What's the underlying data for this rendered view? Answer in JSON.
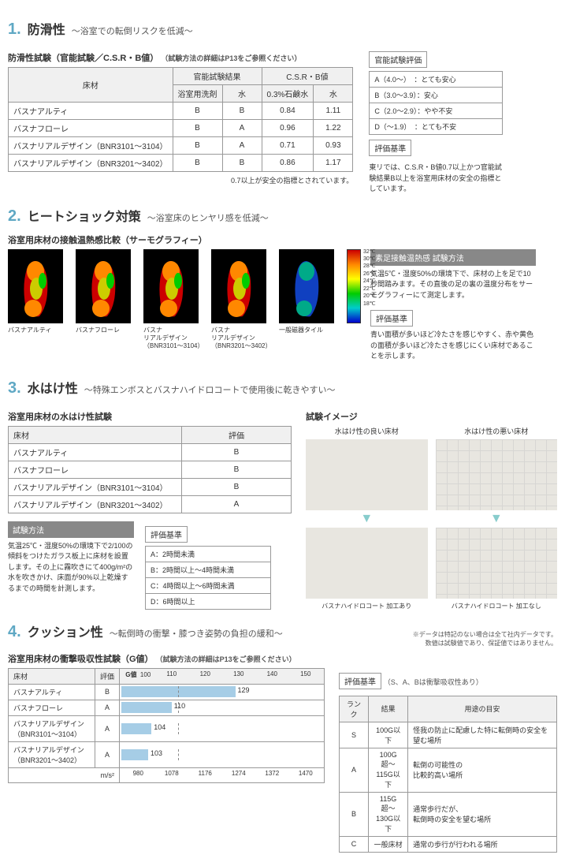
{
  "s1": {
    "num": "1.",
    "name": "防滑性",
    "sub": "〜浴室での転倒リスクを低減〜",
    "subheading": "防滑性試験（官能試験／C.S.R・B値）",
    "subheading_note": "（試験方法の詳細はP13をご参照ください）",
    "table": {
      "h_floor": "床材",
      "h_kanno": "官能試験結果",
      "h_csrb": "C.S.R・B値",
      "h_det": "浴室用洗剤",
      "h_water": "水",
      "h_soap": "0.3%石鹸水",
      "h_water2": "水",
      "rows": [
        {
          "n": "バスナアルティ",
          "a": "B",
          "b": "B",
          "c": "0.84",
          "d": "1.11"
        },
        {
          "n": "バスナフローレ",
          "a": "B",
          "b": "A",
          "c": "0.96",
          "d": "1.22"
        },
        {
          "n": "バスナリアルデザイン（BNR3101〜3104）",
          "a": "B",
          "b": "A",
          "c": "0.71",
          "d": "0.93"
        },
        {
          "n": "バスナリアルデザイン（BNR3201〜3402）",
          "a": "B",
          "b": "B",
          "c": "0.86",
          "d": "1.17"
        }
      ],
      "footnote": "0.7以上が安全の指標とされています。"
    },
    "eval": {
      "hdr": "官能試験評価",
      "rows": [
        "A（4.0〜）　：とても安心",
        "B（3.0〜3.9）：安心",
        "C（2.0〜2.9）：やや不安",
        "D（〜1.9）　：とても不安"
      ],
      "crit_hdr": "評価基準",
      "crit_txt": "東リでは、C.S.R・B値0.7以上かつ官能試験結果B以上を浴室用床材の安全の指標としています。"
    }
  },
  "s2": {
    "num": "2.",
    "name": "ヒートショック対策",
    "sub": "〜浴室床のヒンヤリ感を低減〜",
    "subheading": "浴室用床材の接触温熱感比較（サーモグラフィー）",
    "items": [
      {
        "cap": "バスナアルティ",
        "foot": "warm"
      },
      {
        "cap": "バスナフローレ",
        "foot": "warm"
      },
      {
        "cap": "バスナ\nリアルデザイン\n（BNR3101〜3104）",
        "foot": "warm"
      },
      {
        "cap": "バスナ\nリアルデザイン\n（BNR3201〜3402）",
        "foot": "warm"
      },
      {
        "cap": "一般磁器タイル",
        "foot": "cold"
      }
    ],
    "bar": [
      "32℃",
      "30℃",
      "28℃",
      "26℃",
      "24℃",
      "22℃",
      "20℃",
      "18℃"
    ],
    "side": {
      "h1": "素足接触温熱感 試験方法",
      "t1": "気温5℃・湿度50%の環境下で、床材の上を足で10秒間踏みます。その直後の足の裏の温度分布をサーモグラフィーにて測定します。",
      "h2": "評価基準",
      "t2": "青い面積が多いほど冷たさを感じやすく、赤や黄色の面積が多いほど冷たさを感じにくい床材であることを示します。"
    }
  },
  "s3": {
    "num": "3.",
    "name": "水はけ性",
    "sub": "〜特殊エンボスとバスナハイドロコートで使用後に乾きやすい〜",
    "subheading": "浴室用床材の水はけ性試験",
    "table": {
      "h_floor": "床材",
      "h_eval": "評価",
      "rows": [
        {
          "n": "バスナアルティ",
          "e": "B"
        },
        {
          "n": "バスナフローレ",
          "e": "B"
        },
        {
          "n": "バスナリアルデザイン（BNR3101〜3104）",
          "e": "B"
        },
        {
          "n": "バスナリアルデザイン（BNR3201〜3402）",
          "e": "A"
        }
      ]
    },
    "method": {
      "hdr": "試験方法",
      "txt": "気温25℃・湿度50%の環境下で2/100の傾斜をつけたガラス板上に床材を設置します。その上に霧吹きにて400g/m²の水を吹きかけ、床面が90%以上乾燥するまでの時間を計測します。"
    },
    "crit": {
      "hdr": "評価基準",
      "rows": [
        "A：2時間未満",
        "B：2時間以上〜4時間未満",
        "C：4時間以上〜6時間未満",
        "D：6時間以上"
      ]
    },
    "img": {
      "hdr": "試験イメージ",
      "good": "水はけ性の良い床材",
      "bad": "水はけ性の悪い床材",
      "cap_good": "バスナハイドロコート 加工あり",
      "cap_bad": "バスナハイドロコート 加工なし"
    }
  },
  "s4": {
    "num": "4.",
    "name": "クッション性",
    "sub": "〜転倒時の衝撃・膝つき姿勢の負担の緩和〜",
    "note": "※データは特記のない場合は全て社内データです。\n数値は試験値であり、保証値ではありません。",
    "subheading": "浴室用床材の衝撃吸収性試験（G値）",
    "subheading_note": "（試験方法の詳細はP13をご参照ください）",
    "table": {
      "h_floor": "床材",
      "h_eval": "評価",
      "h_g": "G値",
      "unit": "m/s²",
      "ticks": [
        100,
        110,
        120,
        130,
        140,
        150
      ],
      "bottom_ticks": [
        "980",
        "1078",
        "1176",
        "1274",
        "1372",
        "1470"
      ],
      "bar_color": "#a6cde6",
      "dash_at": 112,
      "range": [
        95,
        155
      ],
      "rows": [
        {
          "n": "バスナアルティ",
          "e": "B",
          "g": 129
        },
        {
          "n": "バスナフローレ",
          "e": "A",
          "g": 110
        },
        {
          "n": "バスナリアルデザイン\n（BNR3101〜3104）",
          "e": "A",
          "g": 104
        },
        {
          "n": "バスナリアルデザイン\n（BNR3201〜3402）",
          "e": "A",
          "g": 103
        }
      ]
    },
    "crit": {
      "hdr": "評価基準",
      "note": "（S、A、Bは衝撃吸収性あり）",
      "h_rank": "ランク",
      "h_res": "結果",
      "h_use": "用途の目安",
      "rows": [
        {
          "r": "S",
          "res": "100G以下",
          "u": "怪我の防止に配慮した特に転倒時の安全を望む場所"
        },
        {
          "r": "A",
          "res": "100G超〜\n115G以下",
          "u": "転倒の可能性の\n比較的高い場所"
        },
        {
          "r": "B",
          "res": "115G超〜\n130G以下",
          "u": "通常歩行だが、\n転倒時の安全を望む場所"
        },
        {
          "r": "C",
          "res": "一般床材",
          "u": "通常の歩行が行われる場所"
        }
      ]
    }
  }
}
